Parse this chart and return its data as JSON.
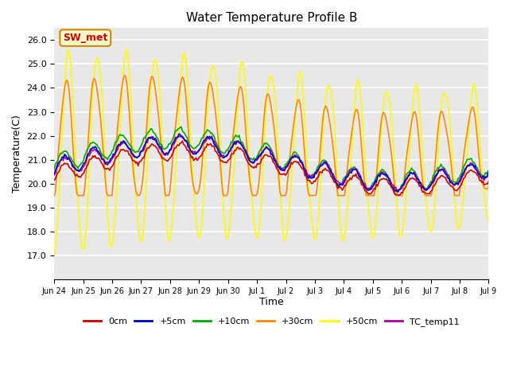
{
  "title": "Water Temperature Profile B",
  "xlabel": "Time",
  "ylabel": "Temperature(C)",
  "ylim": [
    16.0,
    26.5
  ],
  "yticks": [
    17.0,
    18.0,
    19.0,
    20.0,
    21.0,
    22.0,
    23.0,
    24.0,
    25.0,
    26.0
  ],
  "tick_positions": [
    0,
    1,
    2,
    3,
    4,
    5,
    6,
    7,
    8,
    9,
    10,
    11,
    12,
    13,
    14,
    15
  ],
  "tick_labels": [
    "Jun 24",
    "Jun 25",
    "Jun 26",
    "Jun 27",
    "Jun 28",
    "Jun 29",
    "Jun 30",
    "Jul 1",
    "Jul 2",
    "Jul 3",
    "Jul 4",
    "Jul 5",
    "Jul 6",
    "Jul 7",
    "Jul 8",
    "Jul 9"
  ],
  "series_colors": {
    "0cm": "#cc0000",
    "+5cm": "#0000cc",
    "+10cm": "#00aa00",
    "+30cm": "#ff8800",
    "+50cm": "#ffff00",
    "TC_temp11": "#aa00aa"
  },
  "legend_label": "SW_met",
  "bg_color": "#e8e8e8",
  "grid_color": "#ffffff",
  "annotation_box_color": "#ffffcc",
  "annotation_text_color": "#cc0000",
  "annotation_border_color": "#cc8800"
}
